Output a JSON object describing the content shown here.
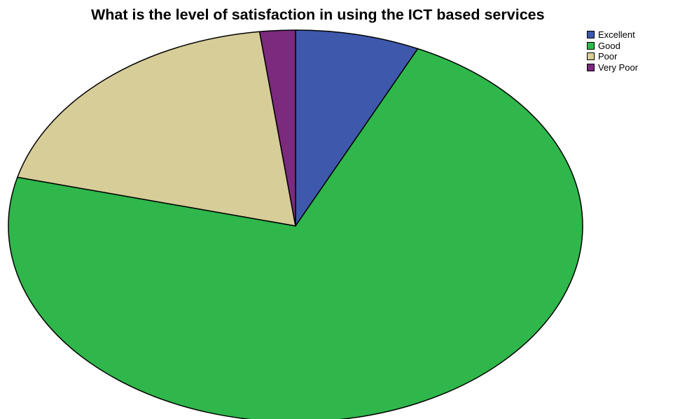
{
  "chart_data": {
    "type": "pie",
    "title": "What is the level of satisfaction in using the ICT based services",
    "legend_position": "top-right",
    "slices": [
      {
        "label": "Excellent",
        "value": 7,
        "color": "#3e58ac"
      },
      {
        "label": "Good",
        "value": 72,
        "color": "#2fb74b"
      },
      {
        "label": "Poor",
        "value": 19,
        "color": "#d6cd98"
      },
      {
        "label": "Very Poor",
        "value": 2,
        "color": "#7b2a7e"
      }
    ]
  }
}
